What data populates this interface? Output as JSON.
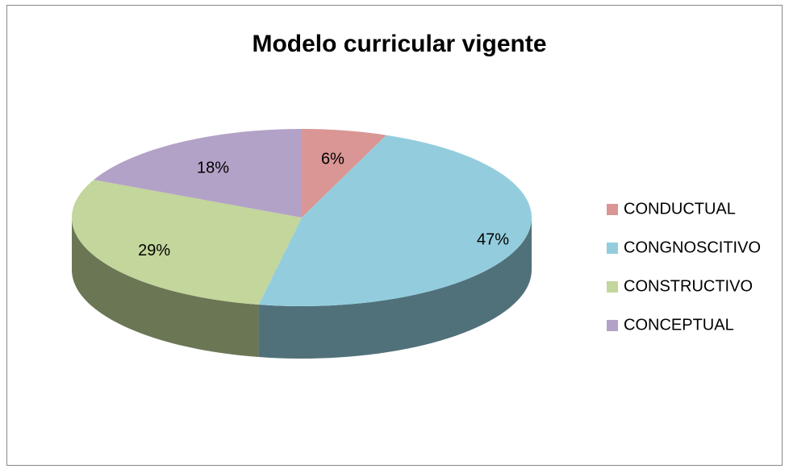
{
  "chart_data": {
    "type": "pie",
    "title": "Modelo curricular vigente",
    "categories": [
      "CONDUCTUAL",
      "CONGNOSCITIVO",
      "CONSTRUCTIVO",
      "CONCEPTUAL"
    ],
    "values": [
      6,
      47,
      29,
      18
    ],
    "value_labels": [
      "6%",
      "47%",
      "29%",
      "18%"
    ],
    "colors": [
      "#d99694",
      "#93cddd",
      "#c3d69b",
      "#b3a2c7"
    ],
    "legend": "right"
  }
}
